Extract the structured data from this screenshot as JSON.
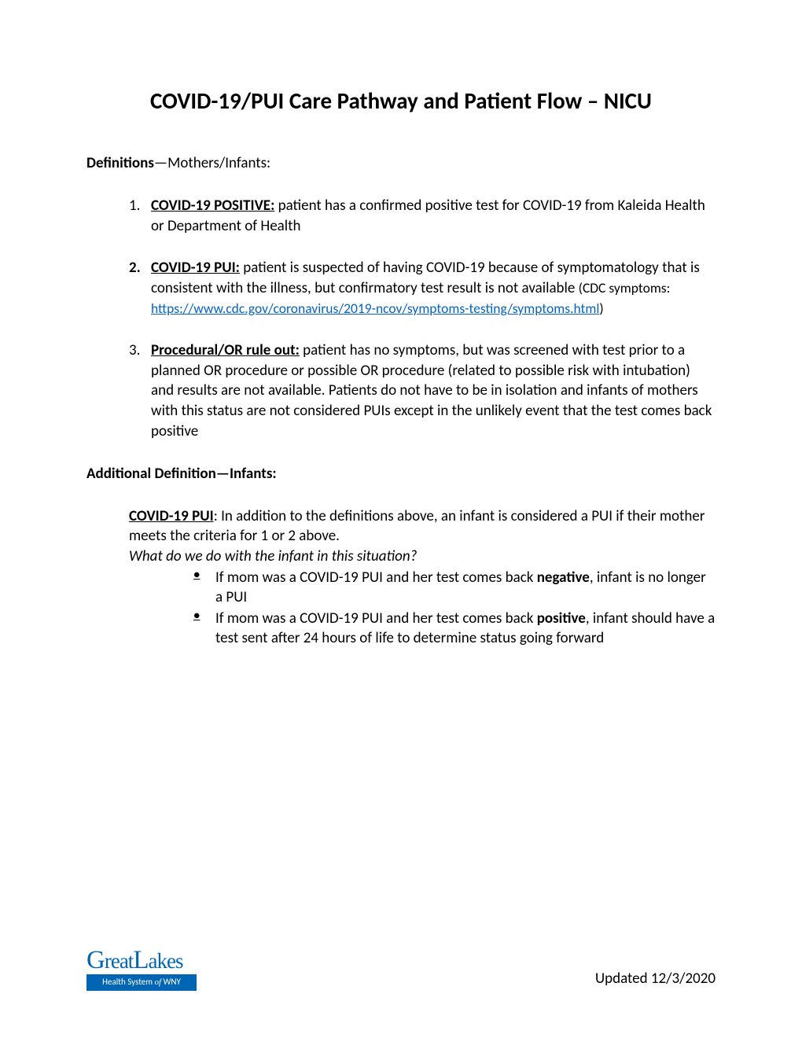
{
  "title": "COVID-19/PUI Care Pathway and Patient Flow – NICU",
  "defs_label_bold": "Definitions",
  "defs_label_rest": "—Mothers/Infants:",
  "defs": [
    {
      "num": "1.",
      "num_bold": false,
      "term": "COVID-19 POSITIVE:",
      "body": " patient has a confirmed positive test for COVID-19 from Kaleida Health or Department of Health"
    },
    {
      "num": "2.",
      "num_bold": true,
      "term": "COVID-19 PUI:",
      "body_pre": " patient is suspected of having COVID-19 because of symptomatology that is consistent with the illness, but confirmatory test result is not available ",
      "small_pre": "(CDC symptoms: ",
      "link_text": "https://www.cdc.gov/coronavirus/2019-ncov/symptoms-testing/symptoms.html",
      "small_post": ")"
    },
    {
      "num": "3.",
      "num_bold": false,
      "term": "Procedural/OR rule out:",
      "body": " patient has no symptoms, but was screened with test prior to a planned OR procedure or possible OR procedure (related to possible risk with intubation) and results are not available.  Patients do not have to be in isolation and infants of mothers with this status are not considered PUIs except in the unlikely event that the test comes back positive"
    }
  ],
  "add_def_label": "Additional Definition—Infants:",
  "sub_term": "COVID-19 PUI",
  "sub_body": ": In addition to the definitions above, an infant is considered a PUI if their mother meets the criteria for 1 or 2 above.",
  "sub_italic": "What do we do with the infant in this situation?",
  "bullets": [
    {
      "pre": "If mom was a COVID-19 PUI and her test comes back ",
      "bold": "negative",
      "post": ", infant is no longer a PUI"
    },
    {
      "pre": "If mom was a COVID-19 PUI and her test comes back ",
      "bold": "positive",
      "post": ", infant should have a test sent after 24 hours of life to determine status going forward"
    }
  ],
  "logo_top_g": "G",
  "logo_top_rest1": "reat",
  "logo_top_l": "L",
  "logo_top_rest2": "akes",
  "logo_bottom_pre": "Health System ",
  "logo_bottom_of": "of",
  "logo_bottom_post": " WNY",
  "updated": "Updated 12/3/2020",
  "colors": {
    "link": "#0563c1",
    "logo_blue": "#0066b3",
    "text": "#000000",
    "bg": "#ffffff"
  }
}
